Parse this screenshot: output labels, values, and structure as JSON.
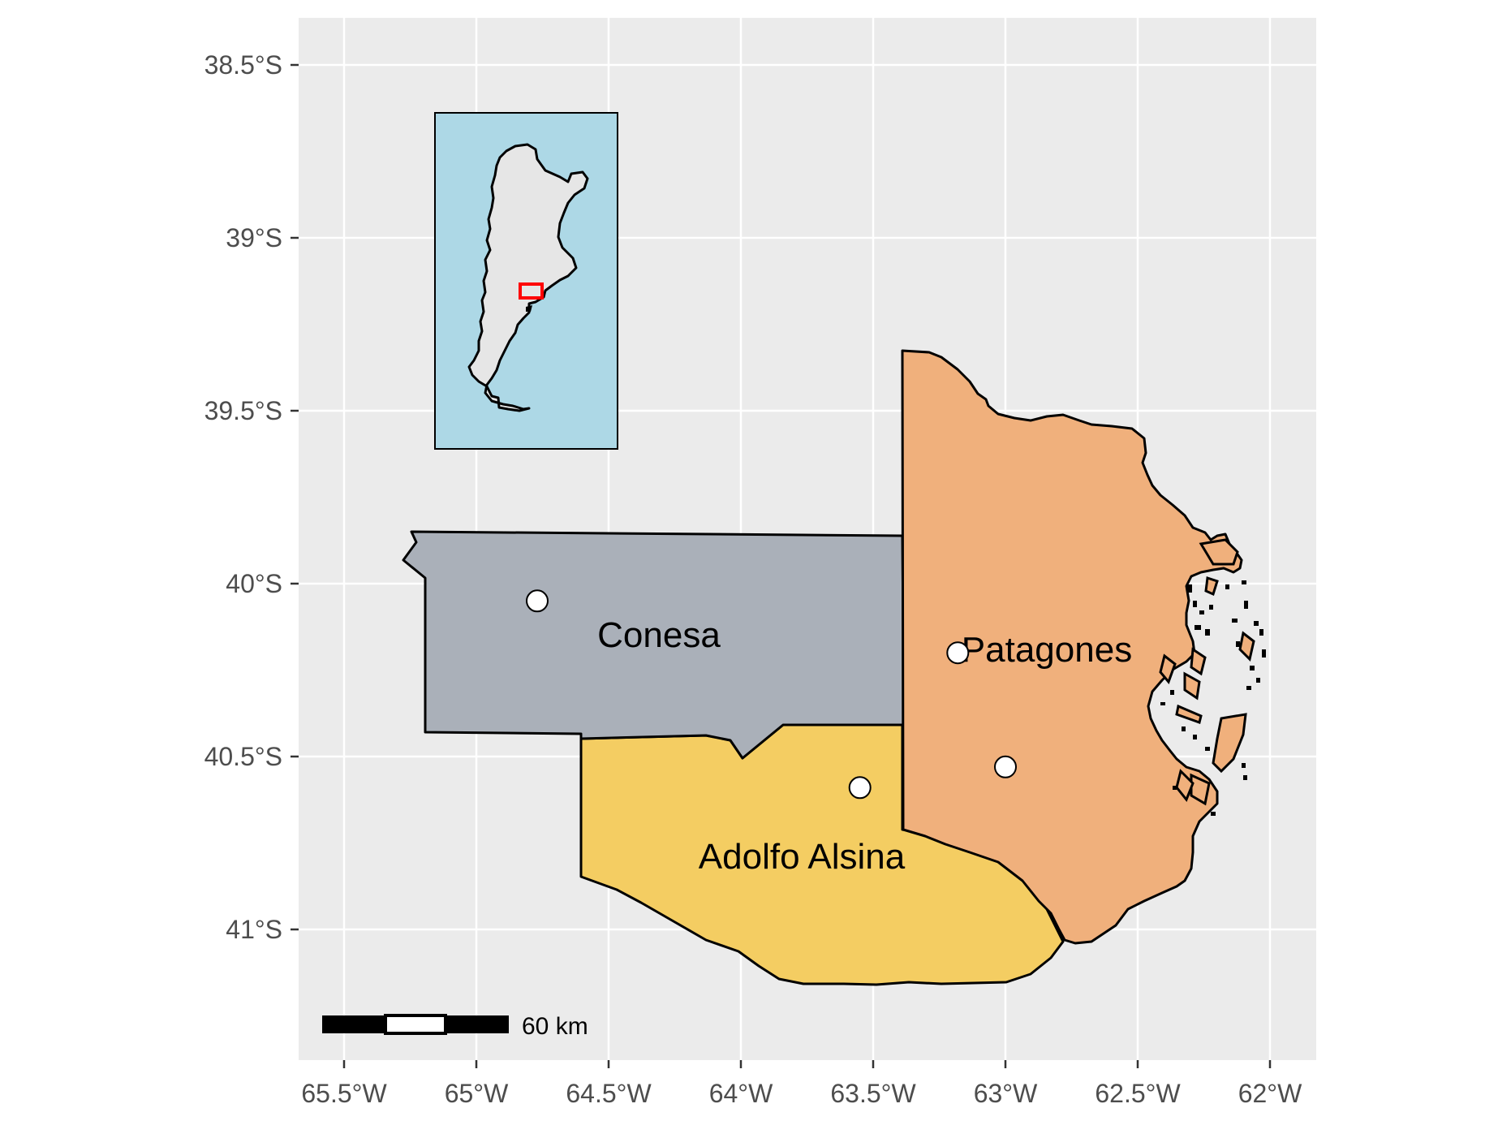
{
  "map": {
    "x_ticks": [
      "65.5°W",
      "65°W",
      "64.5°W",
      "64°W",
      "63.5°W",
      "63°W",
      "62.5°W",
      "62°W"
    ],
    "y_ticks": [
      "38.5°S",
      "39°S",
      "39.5°S",
      "40°S",
      "40.5°S",
      "41°S"
    ],
    "regions": [
      {
        "name": "Conesa",
        "color": "#aab0b9"
      },
      {
        "name": "Patagones",
        "color": "#f0b07c"
      },
      {
        "name": "Adolfo Alsina",
        "color": "#f4cd62"
      }
    ],
    "panel_background": "#ebebeb",
    "grid_color": "#ffffff",
    "inset": {
      "background": "#add8e6",
      "land_color": "#e6e6e6",
      "highlight_color": "#ff0000"
    },
    "scale_bar": {
      "label": "60 km"
    },
    "points": [
      {
        "lon": -64.77,
        "lat": -40.05
      },
      {
        "lon": -63.18,
        "lat": -40.2
      },
      {
        "lon": -63.0,
        "lat": -40.53
      },
      {
        "lon": -63.55,
        "lat": -40.59
      }
    ]
  }
}
